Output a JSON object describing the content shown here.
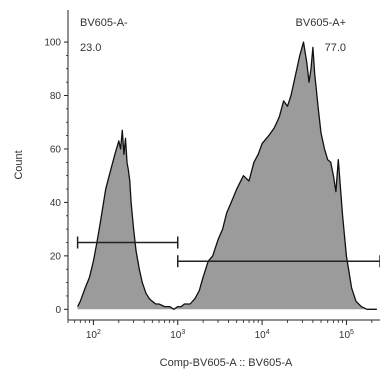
{
  "chart_data": {
    "type": "histogram",
    "xlabel": "Comp-BV605-A :: BV605-A",
    "ylabel": "Count",
    "x_scale": "log",
    "xlim": [
      50,
      250000
    ],
    "ylim": [
      -4,
      112
    ],
    "y_ticks": [
      0,
      20,
      40,
      60,
      80,
      100
    ],
    "y_tick_labels": [
      "0",
      "20",
      "40",
      "60",
      "80",
      "100"
    ],
    "x_ticks": [
      100,
      1000,
      10000,
      100000
    ],
    "x_tick_labels": [
      {
        "base": "10",
        "exp": "2"
      },
      {
        "base": "10",
        "exp": "3"
      },
      {
        "base": "10",
        "exp": "4"
      },
      {
        "base": "10",
        "exp": "5"
      }
    ],
    "fill_color": "#9b9b9b",
    "line_color": "#111111",
    "histogram": {
      "x": [
        65,
        70,
        80,
        90,
        100,
        110,
        120,
        140,
        160,
        180,
        200,
        210,
        220,
        230,
        240,
        250,
        260,
        270,
        280,
        300,
        320,
        350,
        380,
        420,
        460,
        500,
        550,
        600,
        700,
        800,
        900,
        1000,
        1100,
        1200,
        1400,
        1600,
        1800,
        2000,
        2300,
        2600,
        3000,
        3400,
        3800,
        4300,
        5000,
        6000,
        7000,
        8000,
        9000,
        10000,
        12000,
        14000,
        16000,
        18000,
        20000,
        22000,
        25000,
        28000,
        31000,
        34000,
        36000,
        38000,
        40000,
        42000,
        44000,
        46000,
        50000,
        55000,
        60000,
        65000,
        70000,
        75000,
        80000,
        90000,
        100000,
        115000,
        130000,
        150000,
        175000,
        200000,
        230000
      ],
      "count": [
        1,
        3,
        8,
        12,
        18,
        25,
        32,
        45,
        52,
        58,
        63,
        60,
        67,
        58,
        64,
        55,
        52,
        48,
        40,
        30,
        22,
        15,
        10,
        6,
        4,
        3,
        2,
        2,
        1,
        1,
        0,
        1,
        1,
        2,
        2,
        4,
        7,
        12,
        18,
        20,
        26,
        30,
        36,
        40,
        45,
        50,
        48,
        55,
        58,
        62,
        65,
        68,
        72,
        78,
        76,
        80,
        88,
        95,
        100,
        92,
        85,
        90,
        98,
        88,
        82,
        76,
        66,
        60,
        56,
        55,
        50,
        44,
        56,
        35,
        20,
        8,
        3,
        1,
        0,
        0,
        0
      ]
    },
    "gates": [
      {
        "name": "BV605-A-",
        "value": "23.0",
        "x_range": [
          65,
          1000
        ],
        "y": 25
      },
      {
        "name": "BV605-A+",
        "value": "77.0",
        "x_range": [
          1000,
          250000
        ],
        "y": 18
      }
    ]
  }
}
